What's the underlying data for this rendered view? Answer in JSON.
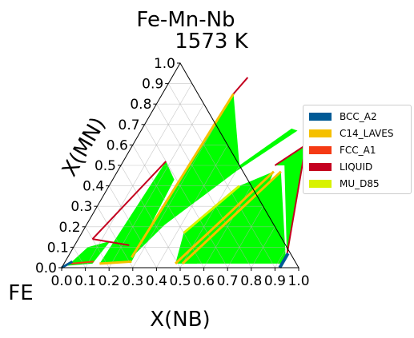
{
  "chart_data": {
    "type": "ternary-phase-diagram",
    "title": "Fe-Mn-Nb",
    "subtitle": "1573  K",
    "corner_label": "FE",
    "xlabel": "X(NB)",
    "ylabel": "X(MN)",
    "x_ticks": [
      "0.0",
      "0.1",
      "0.2",
      "0.3",
      "0.4",
      "0.5",
      "0.6",
      "0.7",
      "0.8",
      "0.9",
      "1.0"
    ],
    "y_ticks": [
      "0.0",
      "0.1",
      "0.2",
      "0.3",
      "0.4",
      "0.5",
      "0.6",
      "0.7",
      "0.8",
      "0.9",
      "1.0"
    ],
    "xlim": [
      0,
      1
    ],
    "ylim": [
      0,
      1
    ],
    "grid": true,
    "legend_placement": "right",
    "legend": [
      {
        "label": "BCC_A2",
        "color": "#005a96"
      },
      {
        "label": "C14_LAVES",
        "color": "#f5c000"
      },
      {
        "label": "FCC_A1",
        "color": "#f53a14"
      },
      {
        "label": "LIQUID",
        "color": "#c4001f"
      },
      {
        "label": "MU_D85",
        "color": "#d8f200"
      }
    ],
    "regions": [
      {
        "phase": "two-phase tie-line field",
        "color": "#00ff00",
        "x_nb": [
          0.27,
          0.33,
          0.5,
          0.66,
          0.63,
          0.5,
          0.3
        ],
        "x_mn": [
          0.05,
          0.21,
          0.47,
          0.67,
          0.68,
          0.5,
          0.85
        ]
      },
      {
        "phase": "two-phase tie-line field",
        "color": "#00ff00",
        "x_nb": [
          0.15,
          0.28,
          0.26,
          0.18
        ],
        "x_mn": [
          0.02,
          0.03,
          0.43,
          0.52
        ]
      },
      {
        "phase": "two-phase tie-line field",
        "color": "#00ff00",
        "x_nb": [
          0.02,
          0.12,
          0.14,
          0.06
        ],
        "x_mn": [
          0.01,
          0.02,
          0.13,
          0.1
        ]
      },
      {
        "phase": "two-phase tie-line field",
        "color": "#00ff00",
        "x_nb": [
          0.47,
          0.56,
          0.69,
          0.66,
          0.55,
          0.43
        ],
        "x_mn": [
          0.02,
          0.02,
          0.25,
          0.47,
          0.4,
          0.17
        ]
      },
      {
        "phase": "two-phase tie-line field",
        "color": "#00ff00",
        "x_nb": [
          0.5,
          0.92,
          0.92,
          0.69
        ],
        "x_mn": [
          0.02,
          0.02,
          0.05,
          0.47
        ]
      },
      {
        "phase": "two-phase tie-line field",
        "color": "#00ff00",
        "x_nb": [
          0.65,
          0.69,
          0.92,
          0.73
        ],
        "x_mn": [
          0.5,
          0.5,
          0.06,
          0.6
        ]
      }
    ]
  }
}
